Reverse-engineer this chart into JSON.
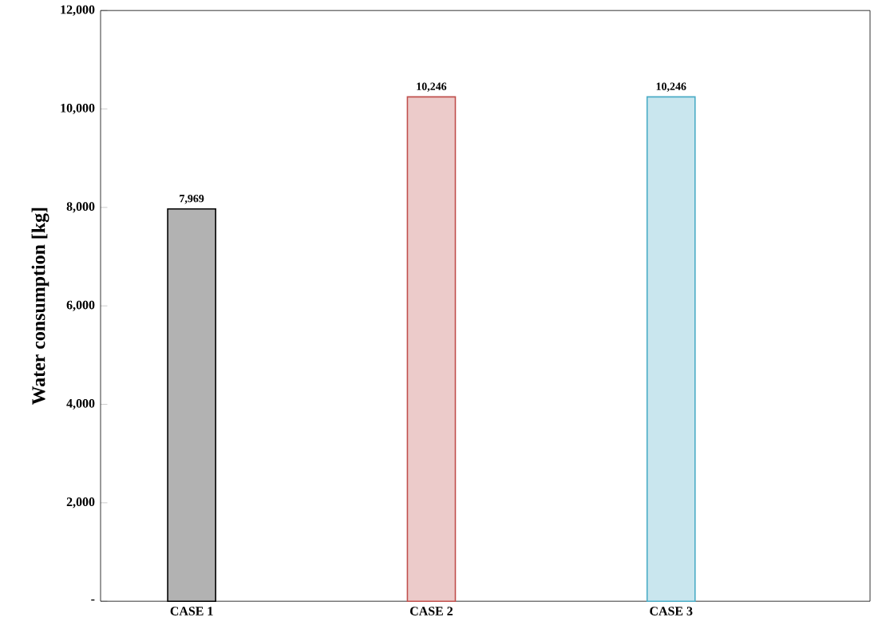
{
  "chart_data": {
    "type": "bar",
    "ylabel": "Water consumption [kg]",
    "categories": [
      "CASE 1",
      "CASE 2",
      "CASE 3"
    ],
    "values": [
      7969,
      10246,
      10246
    ],
    "colors": [
      "#000000",
      "#c0504d",
      "#4bacc6"
    ],
    "value_labels": [
      "7,969",
      "10,246",
      "10,246"
    ],
    "ylim": [
      0,
      12000
    ],
    "yticks": [
      {
        "value": 0,
        "label": "-"
      },
      {
        "value": 2000,
        "label": "2,000"
      },
      {
        "value": 4000,
        "label": "4,000"
      },
      {
        "value": 6000,
        "label": "6,000"
      },
      {
        "value": 8000,
        "label": "8,000"
      },
      {
        "value": 10000,
        "label": "10,000"
      },
      {
        "value": 12000,
        "label": "12,000"
      }
    ],
    "grid": false
  }
}
